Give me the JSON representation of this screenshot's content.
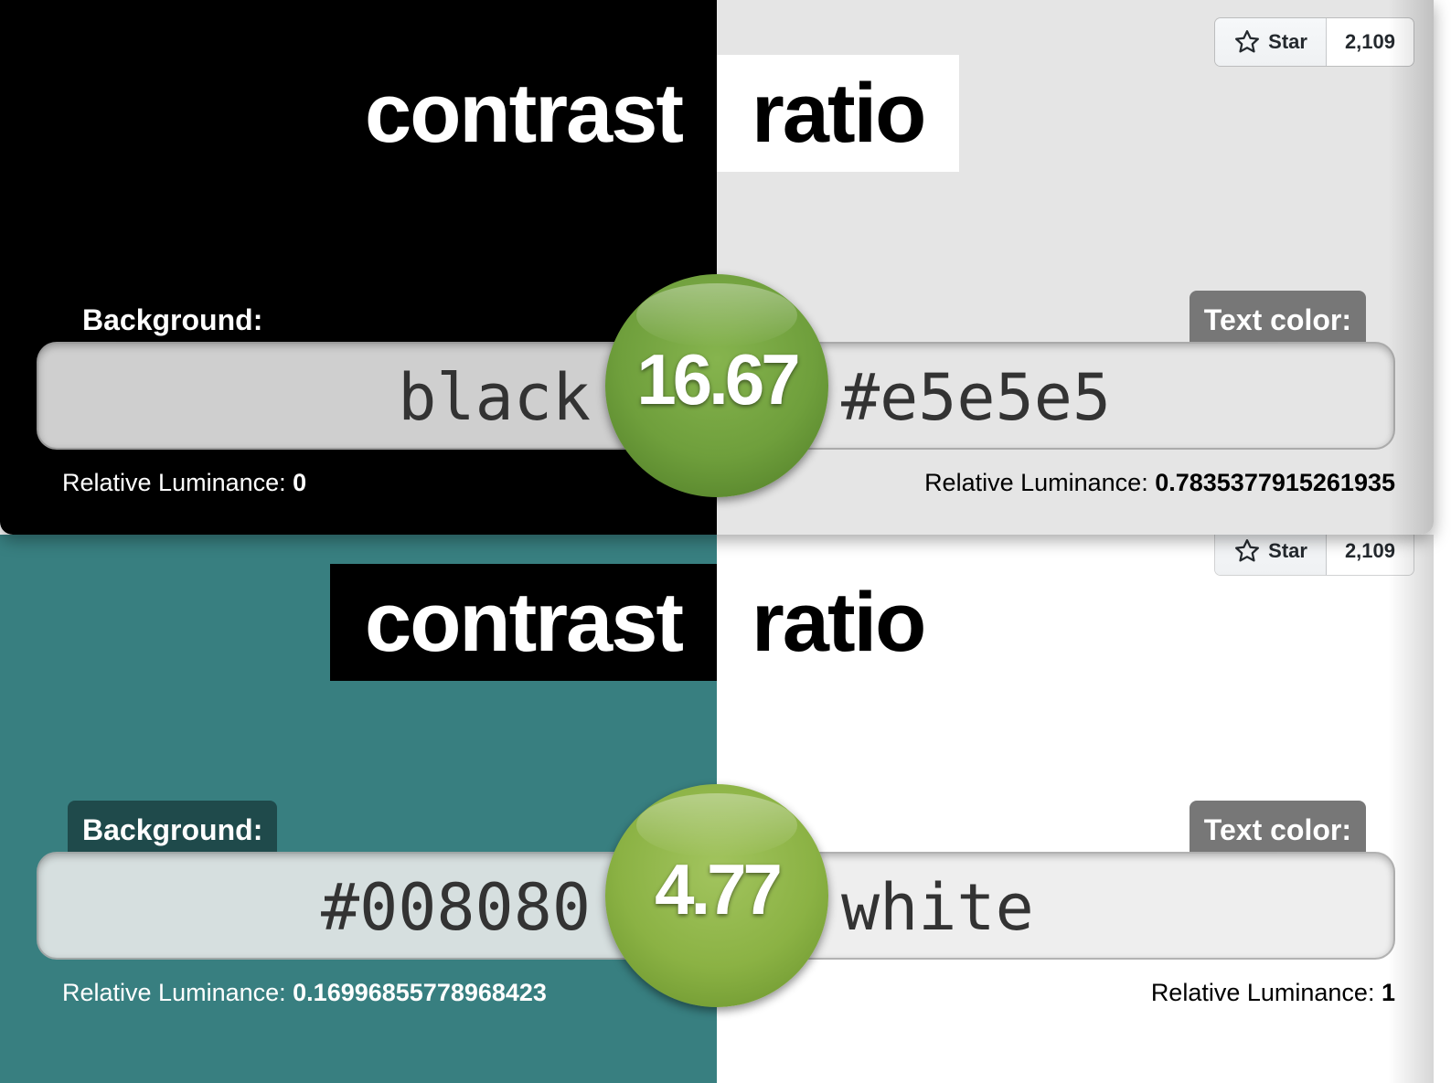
{
  "github": {
    "star_label": "Star",
    "star_count": "2,109",
    "star_icon": "star-outline-icon"
  },
  "panels": [
    {
      "title_left": "contrast",
      "title_right": "ratio",
      "background_label": "Background:",
      "text_color_label": "Text color:",
      "background_value": "black",
      "text_color_value": "#e5e5e5",
      "ratio": "16.67",
      "lum_label": "Relative Luminance:",
      "background_luminance": "0",
      "text_luminance": "0.7835377915261935",
      "colors": {
        "background": "#000000",
        "text": "#e5e5e5",
        "ratio_ball": "#6f9f3c"
      }
    },
    {
      "title_left": "contrast",
      "title_right": "ratio",
      "background_label": "Background:",
      "text_color_label": "Text color:",
      "background_value": "#008080",
      "text_color_value": "white",
      "ratio": "4.77",
      "lum_label": "Relative Luminance:",
      "background_luminance": "0.16996855778968423",
      "text_luminance": "1",
      "colors": {
        "background": "#387f80",
        "text": "#ffffff",
        "ratio_ball": "#8bb244"
      }
    }
  ]
}
